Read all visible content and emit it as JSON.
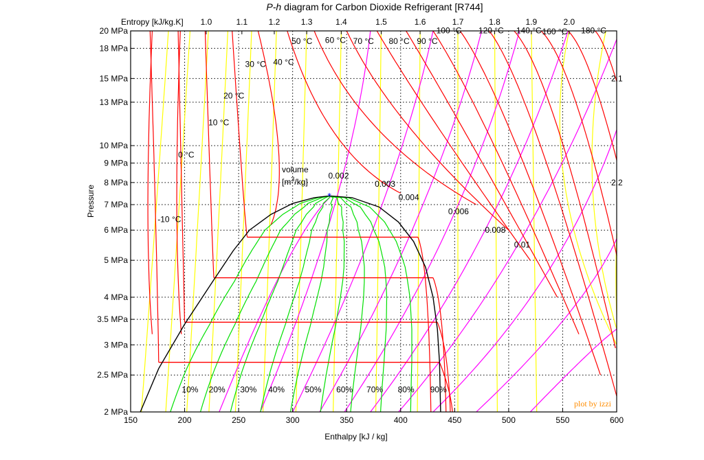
{
  "chart_data": {
    "type": "line",
    "title": "P-h diagram for Carbon Dioxide Refrigerant [R744]",
    "title_italic_part": "P-h",
    "title_rest": " diagram for Carbon Dioxide Refrigerant [R744]",
    "xlabel": "Enthalpy [kJ / kg]",
    "ylabel": "Pressure",
    "xlim": [
      150,
      600
    ],
    "ylim_MPa": [
      2,
      20
    ],
    "y_scale": "log",
    "grid": true,
    "x_ticks": [
      150,
      200,
      250,
      300,
      350,
      400,
      450,
      500,
      550,
      600
    ],
    "x_tick_labels": [
      "150",
      "200",
      "250",
      "300",
      "350",
      "400",
      "450",
      "500",
      "550",
      "600"
    ],
    "y_ticks": [
      2,
      2.5,
      3,
      3.5,
      4,
      5,
      6,
      7,
      8,
      9,
      10,
      13,
      15,
      18,
      20
    ],
    "y_tick_labels": [
      "2 MPa",
      "2.5 MPa",
      "3 MPa",
      "3.5 MPa",
      "4 MPa",
      "5 MPa",
      "6 MPa",
      "7 MPa",
      "8 MPa",
      "9 MPa",
      "10 MPa",
      "13 MPa",
      "15 MPa",
      "18 MPa",
      "20 MPa"
    ],
    "top_axis": {
      "label": "Entropy [kJ/kg.K]",
      "ticks": [
        {
          "label": "1.0",
          "h": 220
        },
        {
          "label": "1.1",
          "h": 253
        },
        {
          "label": "1.2",
          "h": 283
        },
        {
          "label": "1.3",
          "h": 313
        },
        {
          "label": "1.4",
          "h": 345
        },
        {
          "label": "1.5",
          "h": 382
        },
        {
          "label": "1.6",
          "h": 418
        },
        {
          "label": "1.7",
          "h": 453
        },
        {
          "label": "1.8",
          "h": 487
        },
        {
          "label": "1.9",
          "h": 521
        },
        {
          "label": "2.0",
          "h": 556
        }
      ]
    },
    "right_axis_labels": [
      {
        "label": "2.1",
        "p": 15
      },
      {
        "label": "2.2",
        "p": 8
      }
    ],
    "saturation_dome": {
      "liquid": [
        [
          159,
          2
        ],
        [
          176,
          2.6
        ],
        [
          200,
          3.4
        ],
        [
          226,
          4.4
        ],
        [
          245,
          5.3
        ],
        [
          260,
          6.0
        ],
        [
          280,
          6.6
        ],
        [
          300,
          7.05
        ],
        [
          320,
          7.3
        ],
        [
          334,
          7.38
        ]
      ],
      "vapor": [
        [
          334,
          7.38
        ],
        [
          355,
          7.3
        ],
        [
          380,
          6.9
        ],
        [
          398,
          6.3
        ],
        [
          412,
          5.6
        ],
        [
          423,
          4.8
        ],
        [
          430,
          4.0
        ],
        [
          434,
          3.3
        ],
        [
          436,
          2.7
        ],
        [
          437,
          2
        ]
      ],
      "critical_point": {
        "h": 334,
        "p": 7.38
      }
    },
    "isobars_two_phase": [
      {
        "p": 2.7,
        "h_start": 176,
        "h_end": 436
      },
      {
        "p": 3.44,
        "h_start": 200,
        "h_end": 434
      },
      {
        "p": 4.5,
        "h_start": 227,
        "h_end": 430
      },
      {
        "p": 5.75,
        "h_start": 258,
        "h_end": 416
      }
    ],
    "isotherms": [
      {
        "label": "-10 °C",
        "label_pos": [
          175,
          6.3
        ]
      },
      {
        "label": "0 °C",
        "label_pos": [
          194,
          9.3
        ]
      },
      {
        "label": "10 °C",
        "label_pos": [
          222,
          11.3
        ]
      },
      {
        "label": "20 °C",
        "label_pos": [
          236,
          13.3
        ]
      },
      {
        "label": "30 °C",
        "label_pos": [
          256,
          16.1
        ]
      },
      {
        "label": "40 °C",
        "label_pos": [
          282,
          16.3
        ]
      },
      {
        "label": "50 °C",
        "label_pos": [
          299,
          18.5
        ]
      },
      {
        "label": "60 °C",
        "label_pos": [
          330,
          18.6
        ]
      },
      {
        "label": "70 °C",
        "label_pos": [
          356,
          18.5
        ]
      },
      {
        "label": "80 °C",
        "label_pos": [
          389,
          18.5
        ]
      },
      {
        "label": "90 °C",
        "label_pos": [
          415,
          18.5
        ]
      },
      {
        "label": "100 °C",
        "label_pos": [
          433,
          19.7
        ]
      },
      {
        "label": "120 °C",
        "label_pos": [
          472,
          19.7
        ]
      },
      {
        "label": "140 °C",
        "label_pos": [
          507,
          19.7
        ]
      },
      {
        "label": "160 °C",
        "label_pos": [
          531,
          19.6
        ]
      },
      {
        "label": "180 °C",
        "label_pos": [
          567,
          19.7
        ]
      }
    ],
    "specific_volume": {
      "label": "volume",
      "unit_prefix": "[m",
      "unit_sup": "3",
      "unit_suffix": "/kg]",
      "lines": [
        {
          "label": "0.002",
          "label_pos": [
            333,
            8.2
          ]
        },
        {
          "label": "0.003",
          "label_pos": [
            376,
            7.8
          ]
        },
        {
          "label": "0.004",
          "label_pos": [
            398,
            7.2
          ]
        },
        {
          "label": "0.006",
          "label_pos": [
            444,
            6.6
          ]
        },
        {
          "label": "0.008",
          "label_pos": [
            478,
            5.9
          ]
        },
        {
          "label": "0.01",
          "label_pos": [
            505,
            5.4
          ]
        }
      ]
    },
    "quality_lines": {
      "values": [
        "10%",
        "20%",
        "30%",
        "40%",
        "50%",
        "60%",
        "70%",
        "80%",
        "90%"
      ],
      "label_h": [
        205,
        230,
        259,
        285,
        319,
        348,
        376,
        405,
        435
      ],
      "label_p": 2.25
    },
    "series_colors": {
      "isotherm": "#ff0000",
      "isobar": "#ff0000",
      "isentrope": "#ffff00",
      "isochore": "#ff00ff",
      "quality": "#00e000",
      "dome": "#000000",
      "grid": "#000000",
      "critical_point": "#0000ff",
      "credit": "#ff8c00"
    },
    "credit": "plot by izzi"
  }
}
